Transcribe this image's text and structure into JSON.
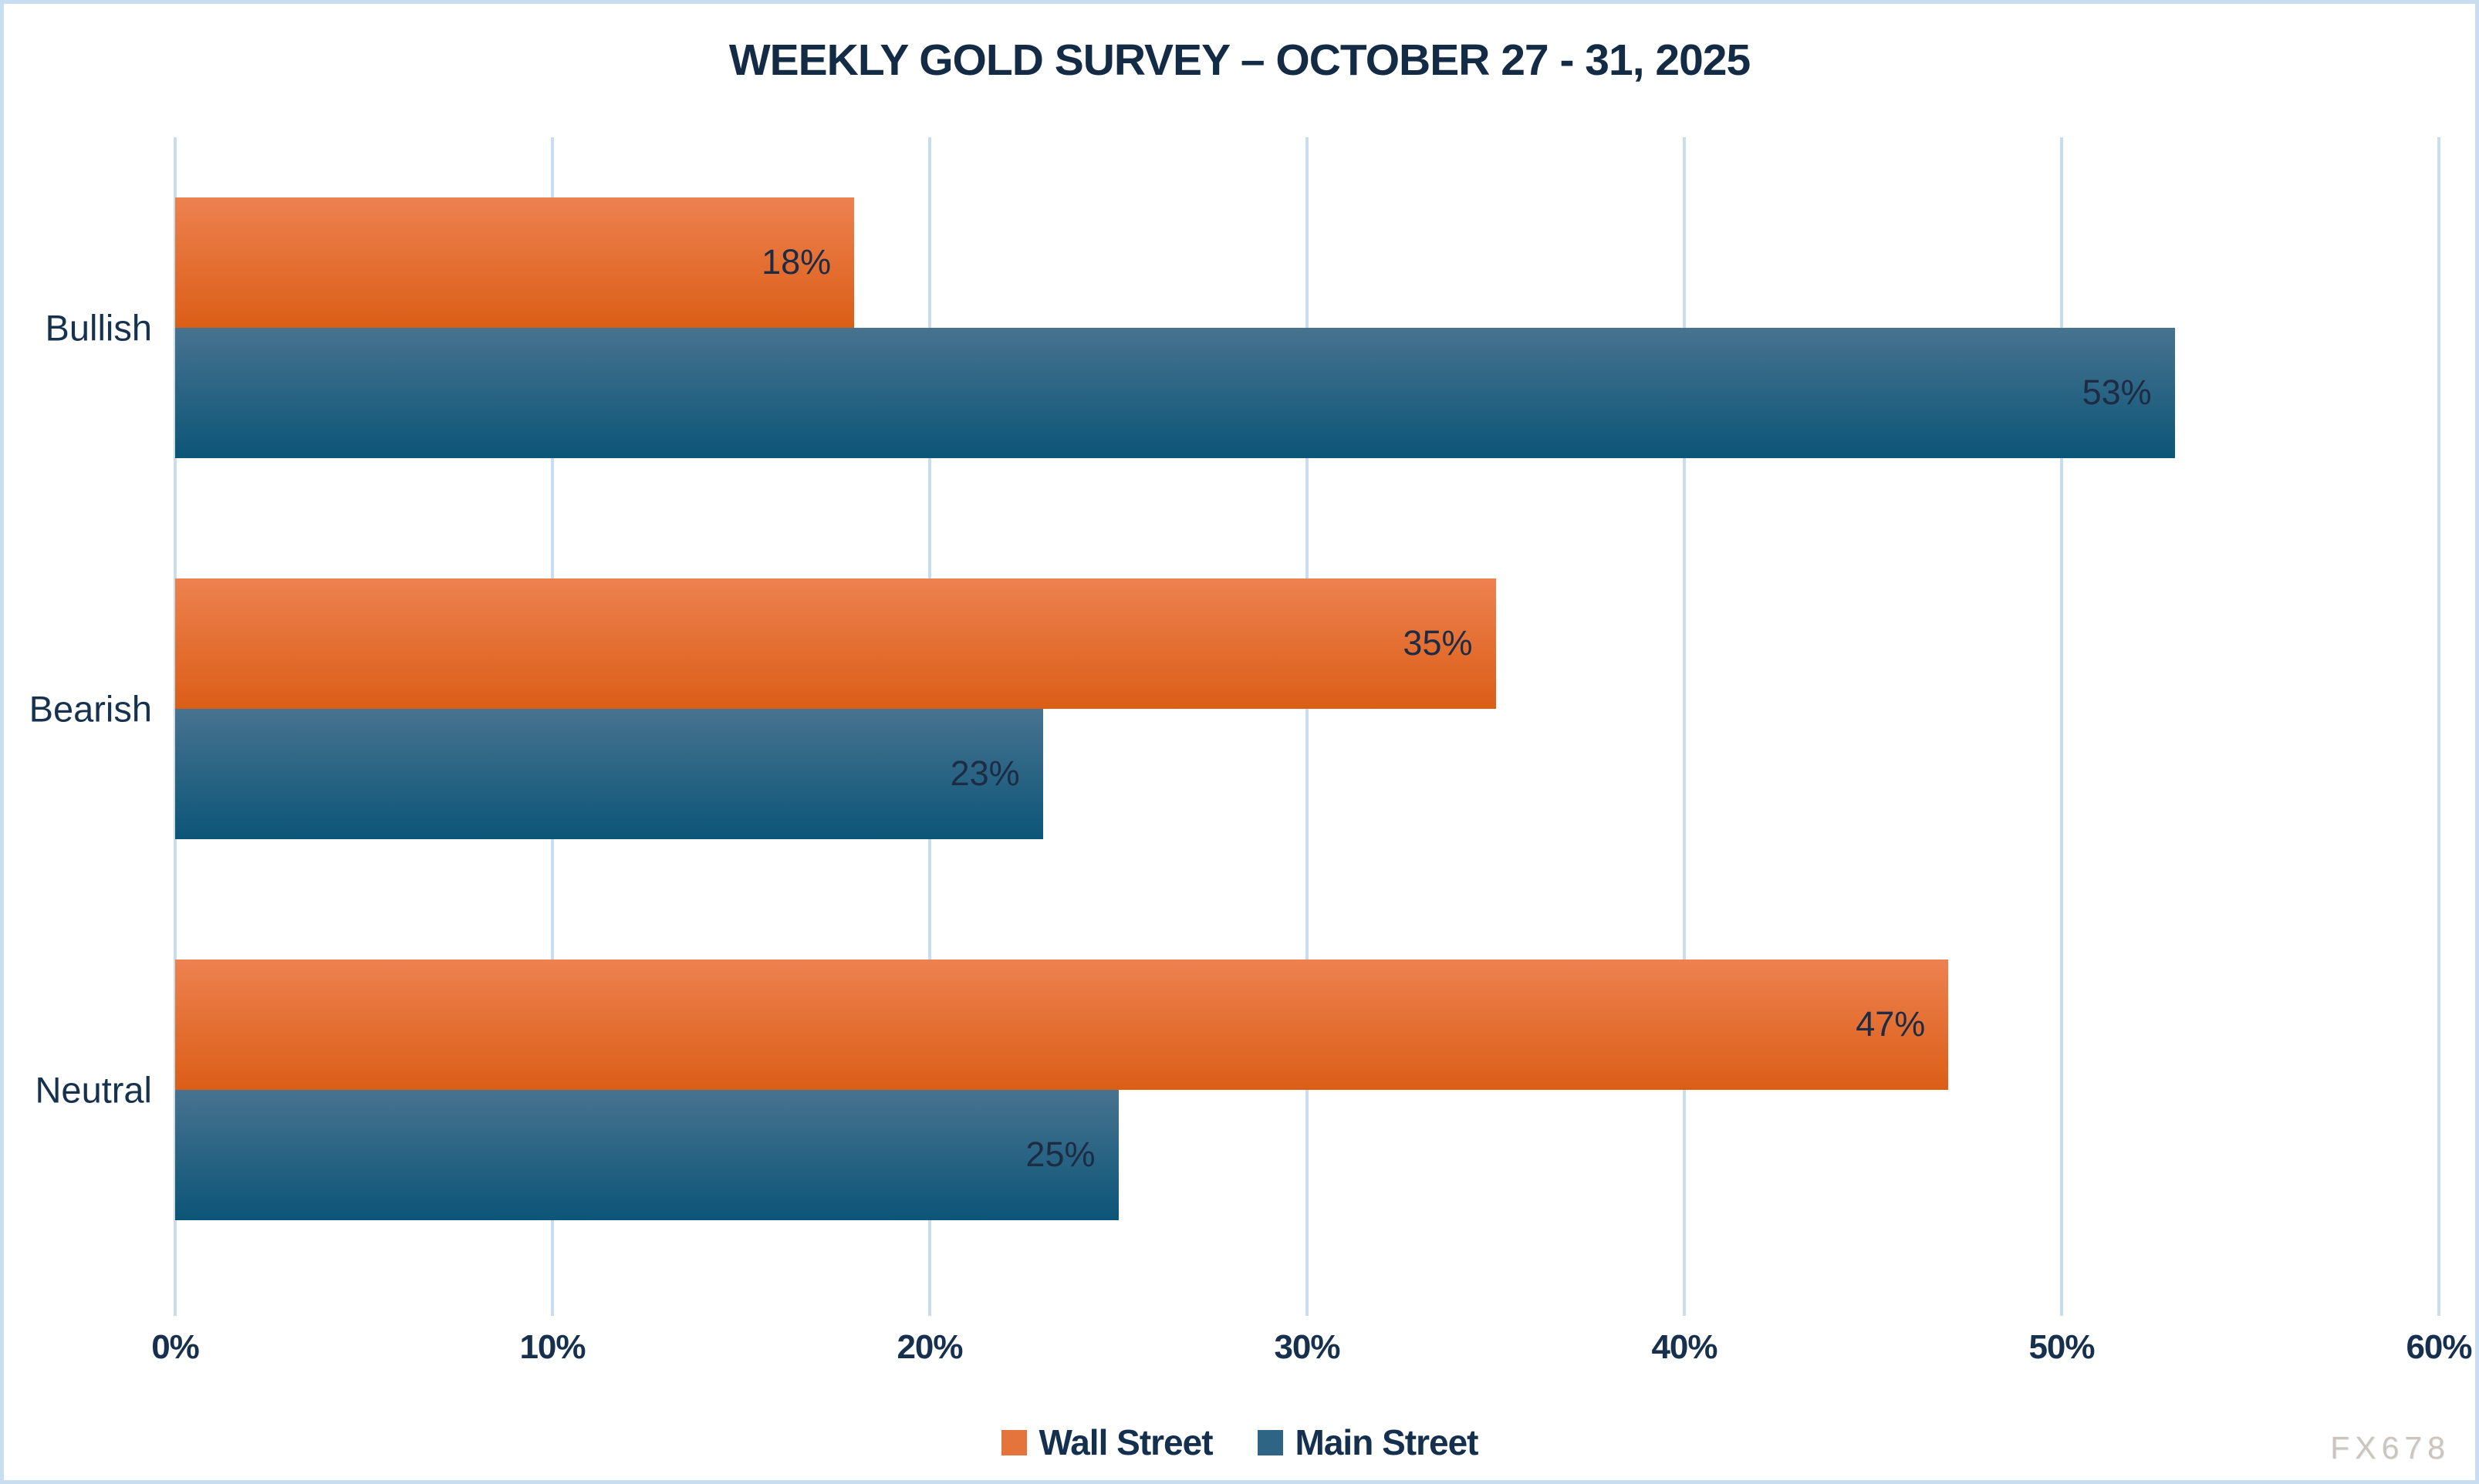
{
  "title": "WEEKLY GOLD SURVEY – OCTOBER 27 - 31, 2025",
  "watermark": "FX678",
  "colors": {
    "border": "#c9ddf0",
    "gridline": "#c9ddf0",
    "title_text": "#132b45",
    "axis_text": "#17304d",
    "value_text": "#1d2b45",
    "wall_street_orange": "#e5743c",
    "main_street_blue": "#2e6584"
  },
  "chart_data": {
    "type": "bar",
    "orientation": "horizontal",
    "title": "WEEKLY GOLD SURVEY – OCTOBER 27 - 31, 2025",
    "categories": [
      "Bullish",
      "Bearish",
      "Neutral"
    ],
    "series": [
      {
        "name": "Wall Street",
        "values": [
          18,
          35,
          47
        ],
        "color_top": "#ed8150",
        "color_bottom": "#db5e16",
        "legend_color": "#e5743c"
      },
      {
        "name": "Main Street",
        "values": [
          53,
          23,
          25
        ],
        "color_top": "#47738f",
        "color_bottom": "#0c5578",
        "legend_color": "#2e6584"
      }
    ],
    "value_suffix": "%",
    "xlabel": "",
    "ylabel": "",
    "xlim": [
      0,
      60
    ],
    "xticks": [
      "0%",
      "10%",
      "20%",
      "30%",
      "40%",
      "50%",
      "60%"
    ],
    "grid": true,
    "legend_position": "bottom"
  }
}
